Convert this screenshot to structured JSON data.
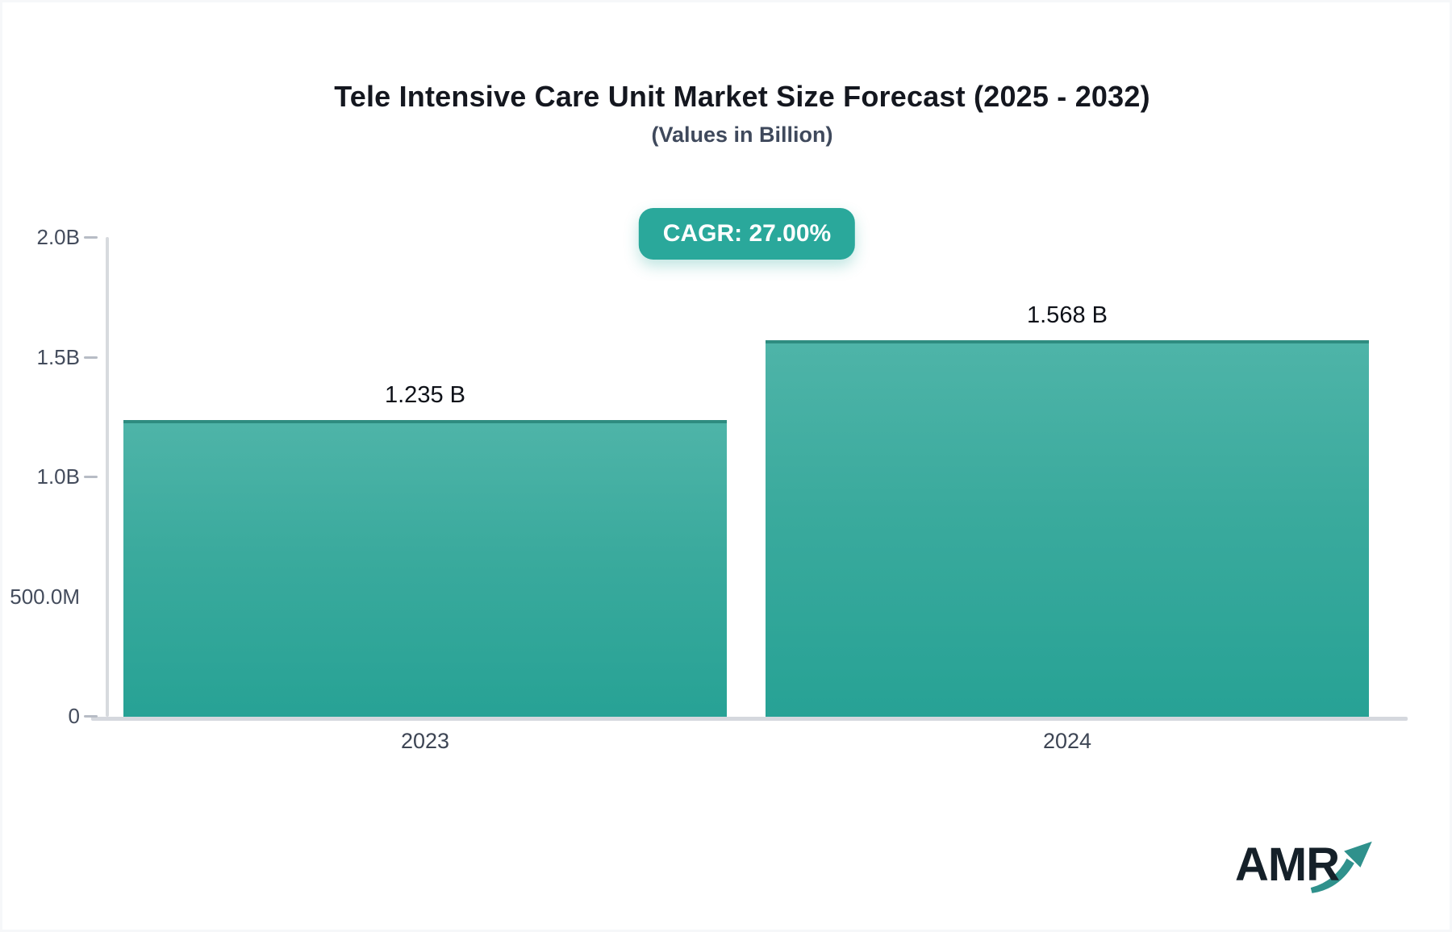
{
  "header": {
    "title": "Tele Intensive Care Unit Market Size Forecast (2025 - 2032)",
    "subtitle": "(Values in Billion)",
    "cagr_badge": "CAGR: 27.00%"
  },
  "branding": {
    "logo_text": "AMR",
    "logo_arrow_icon": "trending-up-arrow"
  },
  "colors": {
    "bar_gradient_top": "#4eb4a8",
    "bar_gradient_bottom": "#27a295",
    "bar_top_border": "#2e8c80",
    "badge_background": "#2aa89b",
    "badge_text": "#ffffff",
    "axis_line": "#d7dade",
    "tick_dash": "#b7bcc5",
    "axis_label": "#444c5c",
    "category_label": "#3d4554",
    "value_label": "#0e1118",
    "title_text": "#14171f",
    "subtitle_text": "#3f495c",
    "logo_text": "#152029",
    "logo_arrow": "#2f918c"
  },
  "chart_data": {
    "type": "bar",
    "title": "Tele Intensive Care Unit Market Size Forecast (2025 - 2032)",
    "subtitle": "(Values in Billion)",
    "annotation": "CAGR: 27.00%",
    "categories": [
      "2023",
      "2024"
    ],
    "values": [
      1.235,
      1.568
    ],
    "value_labels": [
      "1.235 B",
      "1.568 B"
    ],
    "ylabel": "",
    "xlabel": "",
    "ylim": [
      0,
      2.0
    ],
    "grid": false,
    "legend": false,
    "y_ticks": [
      {
        "label": "2.0B",
        "value": 2.0,
        "dash": true
      },
      {
        "label": "1.5B",
        "value": 1.5,
        "dash": true
      },
      {
        "label": "1.0B",
        "value": 1.0,
        "dash": true
      },
      {
        "label": "500.0M",
        "value": 0.5,
        "dash": false
      },
      {
        "label": "0",
        "value": 0.0,
        "dash": true
      }
    ]
  }
}
